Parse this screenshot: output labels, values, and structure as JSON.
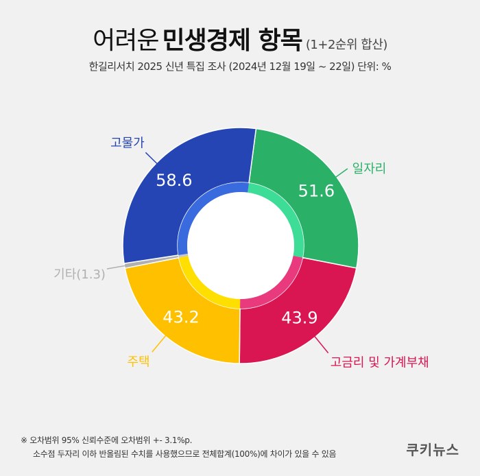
{
  "header": {
    "title_light": "어려운",
    "title_bold": "민생경제 항목",
    "title_note": "(1+2순위 합산)",
    "subtitle": "한길리서치 2025 신년 특집 조사 (2024년 12월 19일 ~ 22일) 단위: %"
  },
  "chart_data": {
    "type": "pie",
    "variant": "donut",
    "unit": "%",
    "slices": [
      {
        "label": "일자리",
        "value": 51.6,
        "value_label": "51.6",
        "color": "#2bb067",
        "inner_color": "#3ddc97"
      },
      {
        "label": "고금리 및 가계부채",
        "value": 43.9,
        "value_label": "43.9",
        "color": "#d91552",
        "inner_color": "#e83a7c"
      },
      {
        "label": "주택",
        "value": 43.2,
        "value_label": "43.2",
        "color": "#ffc000",
        "inner_color": "#ffdf00"
      },
      {
        "label": "기타(1.3)",
        "value": 1.3,
        "value_label": "",
        "color": "#b0b0b0",
        "inner_color": "#c8c8c8"
      },
      {
        "label": "고물가",
        "value": 58.6,
        "value_label": "58.6",
        "color": "#2545b5",
        "inner_color": "#3a6bde"
      }
    ]
  },
  "footer": {
    "note_line1": "※ 오차범위 95% 신뢰수준에 오차범위 +- 3.1%p.",
    "note_line2": "소수점 두자리 이하 반올림된 수치를 사용했으므로 전체합계(100%)에 차이가 있을 수 있음",
    "brand": "쿠키뉴스"
  }
}
